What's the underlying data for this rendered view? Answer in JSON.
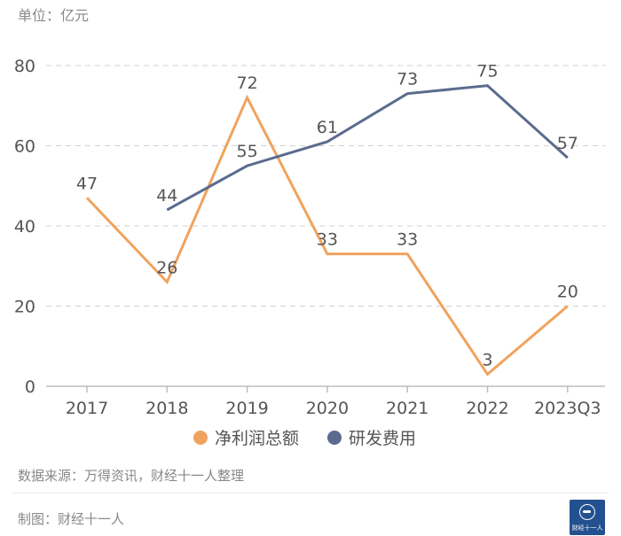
{
  "unit_label": "单位：亿元",
  "footer": {
    "source": "数据来源：万得资讯，财经十一人整理",
    "maker": "制图：财经十一人",
    "logo_text": "财经十一人"
  },
  "colors": {
    "net_profit": "#f0a35e",
    "rd_expense": "#5b6b8e",
    "grid": "#d0d0d0",
    "axis": "#bdbdbd",
    "text": "#555555"
  },
  "chart_data": {
    "type": "line",
    "categories": [
      "2017",
      "2018",
      "2019",
      "2020",
      "2021",
      "2022",
      "2023Q3"
    ],
    "ylim": [
      0,
      80
    ],
    "yticks": [
      0,
      20,
      40,
      60,
      80
    ],
    "grid": true,
    "legend_position": "bottom",
    "series": [
      {
        "name": "净利润总额",
        "color_key": "net_profit",
        "values": [
          47,
          26,
          72,
          33,
          33,
          3,
          20
        ],
        "labels": [
          "47",
          "26",
          "72",
          "33",
          "33",
          "3",
          "20"
        ]
      },
      {
        "name": "研发费用",
        "color_key": "rd_expense",
        "values": [
          null,
          44,
          55,
          61,
          73,
          75,
          57
        ],
        "labels": [
          null,
          "44",
          "55",
          "61",
          "73",
          "75",
          "57"
        ]
      }
    ]
  }
}
